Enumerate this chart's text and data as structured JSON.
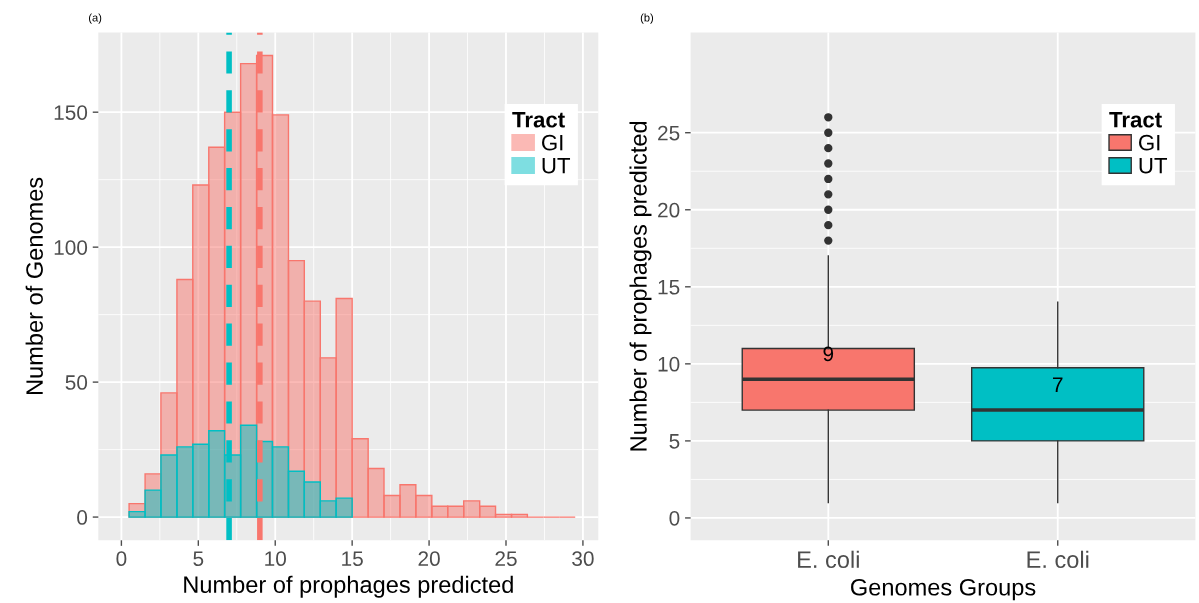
{
  "chart_data": [
    {
      "type": "histogram",
      "title": "(a)",
      "xlabel": "Number of prophages predicted",
      "ylabel": "Number of Genomes",
      "legend_title": "Tract",
      "legend": "top right",
      "grid": true,
      "bins": [
        0.5,
        1.54,
        2.57,
        3.61,
        4.64,
        5.68,
        6.71,
        7.75,
        8.79,
        9.82,
        10.86,
        11.89,
        12.93,
        13.96,
        15.0,
        16.04,
        17.07,
        18.11,
        19.14,
        20.18,
        21.21,
        22.25,
        23.29,
        24.32,
        25.36,
        26.39,
        27.43,
        28.46,
        29.5
      ],
      "series": [
        {
          "name": "GI",
          "color": "#f8766d",
          "values": [
            5,
            16,
            46,
            88,
            123,
            137,
            150,
            168,
            171,
            149,
            95,
            80,
            59,
            81,
            29,
            18,
            8,
            12,
            8,
            4,
            4,
            6,
            4,
            1,
            1,
            0,
            0,
            0
          ]
        },
        {
          "name": "UT",
          "color": "#00bfc4",
          "values": [
            2,
            10,
            23,
            26,
            27,
            32,
            23,
            34,
            28,
            26,
            17,
            13,
            6,
            7,
            null,
            null,
            null,
            null,
            null,
            null,
            null,
            null,
            null,
            null,
            null,
            null,
            null,
            null
          ]
        }
      ],
      "ref_lines": [
        {
          "axis": "x",
          "value": 7,
          "color": "#00bfc4",
          "line_style": "dashed"
        },
        {
          "axis": "x",
          "value": 9,
          "color": "#f8766d",
          "line_style": "dashed"
        }
      ],
      "xlim": [
        -1.5,
        31.0
      ],
      "ylim": [
        -8.6,
        179.5
      ],
      "xticks": [
        0,
        5,
        10,
        15,
        20,
        25,
        30
      ],
      "yticks": [
        0,
        50,
        100,
        150
      ]
    },
    {
      "type": "box",
      "title": "(b)",
      "xlabel": "Genomes Groups",
      "ylabel": "Number of prophages predicted",
      "legend_title": "Tract",
      "legend": "top right",
      "grid": true,
      "categories": [
        "E. coli",
        "E. coli"
      ],
      "series": [
        {
          "name": "GI",
          "color": "#f8766d",
          "boxes": [
            {
              "low": 1,
              "q1": 7,
              "median": 9,
              "q3": 11,
              "high": 17,
              "outliers": [
                18,
                19,
                20,
                21,
                22,
                23,
                24,
                25,
                26
              ]
            },
            null
          ],
          "value_labels": [
            "9",
            null
          ]
        },
        {
          "name": "UT",
          "color": "#00bfc4",
          "boxes": [
            null,
            {
              "low": 1,
              "q1": 5,
              "median": 7,
              "q3": 9.75,
              "high": 14
            }
          ],
          "value_labels": [
            null,
            "7"
          ]
        }
      ],
      "ylim": [
        -1.45,
        31.5
      ],
      "yticks": [
        0,
        5,
        10,
        15,
        20,
        25
      ]
    }
  ]
}
